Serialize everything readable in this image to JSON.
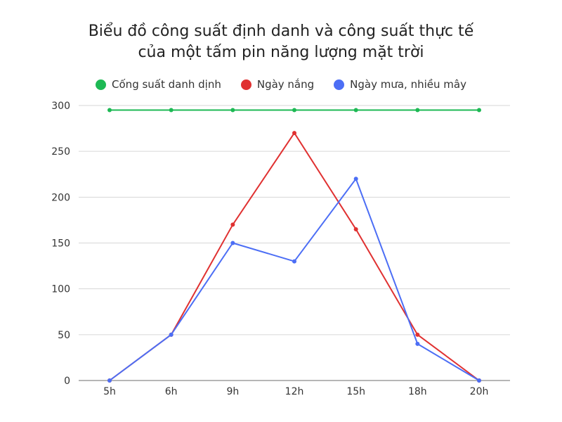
{
  "title_line1": "Biểu đồ công suất định danh và công suất thực tế",
  "title_line2": "của một tấm pin năng lượng mặt trời",
  "legend": [
    {
      "label": "Cống suất danh dịnh",
      "color": "#1db954"
    },
    {
      "label": "Ngày nắng",
      "color": "#e03131"
    },
    {
      "label": "Ngày mưa, nhiều mây",
      "color": "#4c6ef5"
    }
  ],
  "chart_data": {
    "type": "line",
    "title": "Biểu đồ công suất định danh và công suất thực tế của một tấm pin năng lượng mặt trời",
    "xlabel": "",
    "ylabel": "",
    "categories": [
      "5h",
      "6h",
      "9h",
      "12h",
      "15h",
      "18h",
      "20h"
    ],
    "series": [
      {
        "name": "Cống suất danh dịnh",
        "color": "#1db954",
        "values": [
          295,
          295,
          295,
          295,
          295,
          295,
          295
        ]
      },
      {
        "name": "Ngày nắng",
        "color": "#e03131",
        "values": [
          0,
          50,
          170,
          270,
          165,
          50,
          0
        ]
      },
      {
        "name": "Ngày mưa, nhiều mây",
        "color": "#4c6ef5",
        "values": [
          0,
          50,
          150,
          130,
          220,
          40,
          0
        ]
      }
    ],
    "ylim": [
      0,
      300
    ],
    "yticks": [
      0,
      50,
      100,
      150,
      200,
      250,
      300
    ],
    "grid": true,
    "legend_position": "top"
  }
}
